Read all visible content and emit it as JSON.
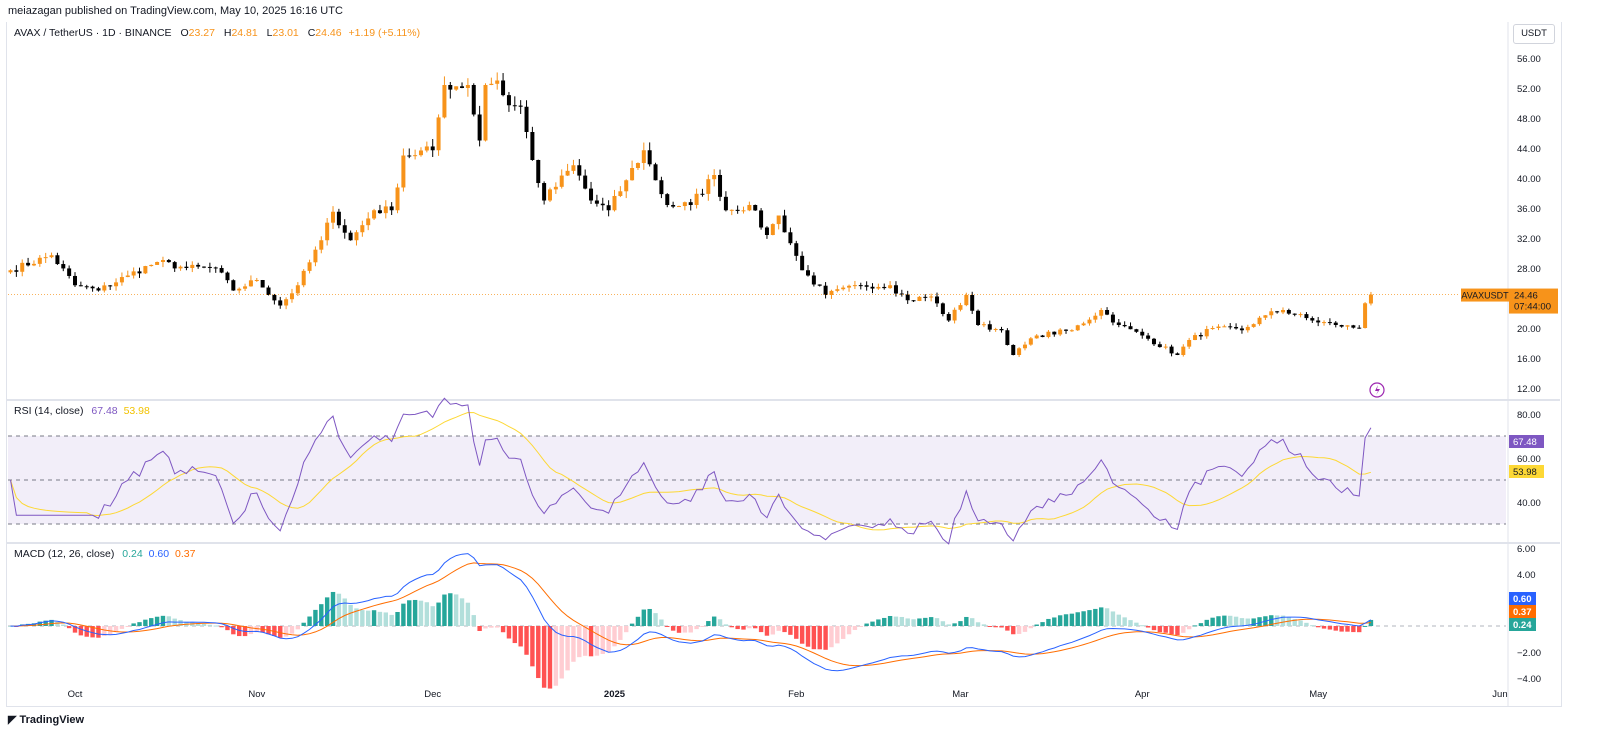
{
  "header": {
    "published": "meiazagan published on TradingView.com, May 10, 2025 16:16 UTC",
    "symbol": "AVAX / TetherUS · 1D · BINANCE",
    "o_label": "O",
    "open": "23.27",
    "h_label": "H",
    "high": "24.81",
    "l_label": "L",
    "low": "23.01",
    "c_label": "C",
    "close": "24.46",
    "change": "+1.19 (+5.11%)"
  },
  "currency_button": "USDT",
  "last_price": {
    "ticker_label": "AVAXUSDT",
    "price": "24.46",
    "countdown": "07:44:00"
  },
  "rsi": {
    "title": "RSI (14, close)",
    "value": "67.48",
    "ma_value": "53.98"
  },
  "macd": {
    "title": "MACD (12, 26, close)",
    "hist_value": "0.24",
    "macd_value": "0.60",
    "signal_value": "0.37"
  },
  "footer": {
    "logo": "TradingView"
  },
  "colors": {
    "up": "#f7931a",
    "down": "#000000",
    "rsi": "#7e57c2",
    "rsi_ma": "#fdd835",
    "macd": "#2962ff",
    "signal": "#ff6d00",
    "hist_up": "#26a69a",
    "hist_up_light": "#b2dfdb",
    "hist_down": "#ff5252",
    "hist_down_light": "#ffcdd2"
  },
  "chart_data": {
    "type": "candlestick",
    "title": "AVAX / TetherUS · 1D · BINANCE",
    "ylabel": "USDT",
    "ylim": [
      12,
      56
    ],
    "price_ticks": [
      "56.00",
      "52.00",
      "48.00",
      "44.00",
      "40.00",
      "36.00",
      "32.00",
      "28.00",
      "20.00",
      "16.00",
      "12.00"
    ],
    "rsi_ticks": [
      "80.00",
      "60.00",
      "40.00"
    ],
    "macd_ticks": [
      "6.00",
      "4.00",
      "−2.00",
      "−4.00"
    ],
    "x_ticks": [
      "Oct",
      "Nov",
      "Dec",
      "2025",
      "Feb",
      "Mar",
      "Apr",
      "May",
      "Jun"
    ],
    "approx_closes": [
      [
        "2024-09-20",
        27.7
      ],
      [
        "2024-09-27",
        29.7
      ],
      [
        "2024-10-01",
        25.7
      ],
      [
        "2024-10-05",
        25.0
      ],
      [
        "2024-10-10",
        27.0
      ],
      [
        "2024-10-15",
        28.8
      ],
      [
        "2024-10-20",
        28.0
      ],
      [
        "2024-10-25",
        28.0
      ],
      [
        "2024-10-28",
        25.0
      ],
      [
        "2024-11-01",
        26.4
      ],
      [
        "2024-11-05",
        23.0
      ],
      [
        "2024-11-08",
        25.7
      ],
      [
        "2024-11-12",
        31.7
      ],
      [
        "2024-11-14",
        35.5
      ],
      [
        "2024-11-17",
        31.7
      ],
      [
        "2024-11-21",
        35.7
      ],
      [
        "2024-11-24",
        35.7
      ],
      [
        "2024-11-26",
        43.0
      ],
      [
        "2024-12-01",
        43.7
      ],
      [
        "2024-12-03",
        52.4
      ],
      [
        "2024-12-07",
        52.4
      ],
      [
        "2024-12-09",
        45.0
      ],
      [
        "2024-12-10",
        52.4
      ],
      [
        "2024-12-12",
        53.0
      ],
      [
        "2024-12-14",
        49.7
      ],
      [
        "2024-12-16",
        49.5
      ],
      [
        "2024-12-18",
        42.4
      ],
      [
        "2024-12-20",
        37.0
      ],
      [
        "2024-12-25",
        41.7
      ],
      [
        "2024-12-28",
        37.0
      ],
      [
        "2024-12-31",
        35.7
      ],
      [
        "2025-01-03",
        39.7
      ],
      [
        "2025-01-06",
        43.7
      ],
      [
        "2025-01-08",
        39.7
      ],
      [
        "2025-01-10",
        36.4
      ],
      [
        "2025-01-14",
        36.4
      ],
      [
        "2025-01-18",
        40.4
      ],
      [
        "2025-01-20",
        35.7
      ],
      [
        "2025-01-24",
        36.4
      ],
      [
        "2025-01-27",
        32.4
      ],
      [
        "2025-01-29",
        35.0
      ],
      [
        "2025-02-02",
        27.7
      ],
      [
        "2025-02-03",
        27.0
      ],
      [
        "2025-02-06",
        24.4
      ],
      [
        "2025-02-12",
        25.7
      ],
      [
        "2025-02-17",
        25.7
      ],
      [
        "2025-02-20",
        23.7
      ],
      [
        "2025-02-24",
        24.2
      ],
      [
        "2025-02-27",
        21.0
      ],
      [
        "2025-03-02",
        24.4
      ],
      [
        "2025-03-04",
        20.4
      ],
      [
        "2025-03-08",
        19.7
      ],
      [
        "2025-03-10",
        16.4
      ],
      [
        "2025-03-14",
        19.0
      ],
      [
        "2025-03-20",
        19.7
      ],
      [
        "2025-03-25",
        22.4
      ],
      [
        "2025-03-28",
        20.4
      ],
      [
        "2025-04-01",
        19.0
      ],
      [
        "2025-04-07",
        16.4
      ],
      [
        "2025-04-09",
        18.4
      ],
      [
        "2025-04-13",
        20.0
      ],
      [
        "2025-04-18",
        19.7
      ],
      [
        "2025-04-22",
        21.7
      ],
      [
        "2025-04-25",
        22.4
      ],
      [
        "2025-04-30",
        21.0
      ],
      [
        "2025-05-04",
        20.4
      ],
      [
        "2025-05-08",
        20.0
      ],
      [
        "2025-05-09",
        23.3
      ],
      [
        "2025-05-10",
        24.46
      ]
    ],
    "last_candle": {
      "open": 23.27,
      "high": 24.81,
      "low": 23.01,
      "close": 24.46
    },
    "rsi_bands": [
      70,
      50,
      30
    ],
    "grid": false
  }
}
